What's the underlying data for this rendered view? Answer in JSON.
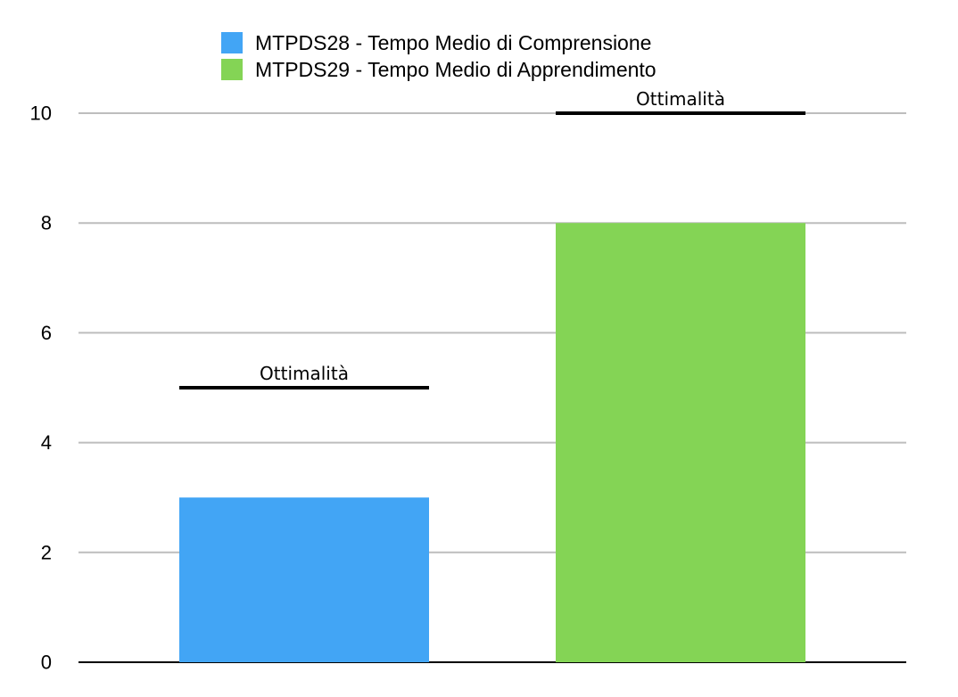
{
  "chart_data": {
    "type": "bar",
    "title": "",
    "xlabel": "",
    "ylabel": "",
    "ylim": [
      0,
      10
    ],
    "yticks": [
      0,
      2,
      4,
      6,
      8,
      10
    ],
    "grid": true,
    "legend_position": "top-center",
    "series": [
      {
        "name": "MTPDS28 - Tempo Medio di Comprensione",
        "value": 3,
        "color": "#42a5f5",
        "optimal": 5
      },
      {
        "name": "MTPDS29 - Tempo Medio di Apprendimento",
        "value": 8,
        "color": "#84d455",
        "optimal": 10
      }
    ],
    "reference_label": "Ottimalità"
  }
}
